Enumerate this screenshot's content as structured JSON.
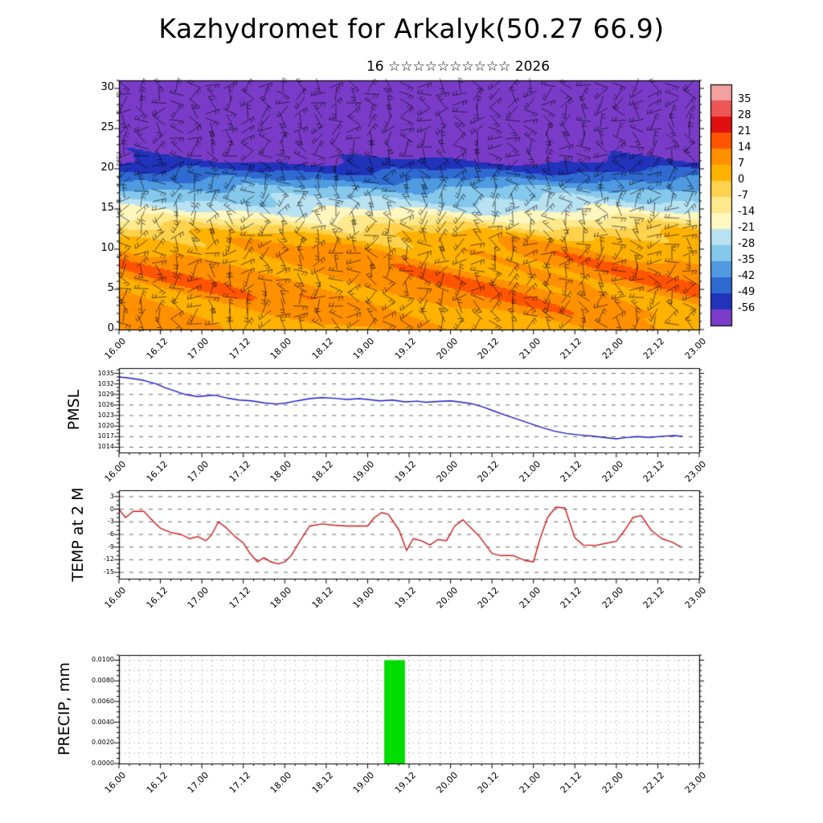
{
  "title": "Kazhydromet for Arkalyk(50.27 66.9)",
  "subtitle": "16 ☆☆☆☆☆☆☆☆☆☆ 2026",
  "colors": {
    "pmsl_line": "#1a1acc",
    "temp_line": "#cc1a1a",
    "precip_bar": "#00dd00",
    "grid_dash": "#444444",
    "grid_dot": "#777777",
    "axis": "#000000",
    "barb": "rgba(0,0,0,0.85)"
  },
  "time_axis": {
    "start": 16,
    "end": 23,
    "labels": [
      "16.00",
      "16.12",
      "17.00",
      "17.12",
      "18.00",
      "18.12",
      "19.00",
      "19.12",
      "20.00",
      "20.12",
      "21.00",
      "21.12",
      "22.00",
      "22.12",
      "23.00"
    ]
  },
  "chart_data": [
    {
      "id": "cross_section",
      "type": "heatmap",
      "ylabel": "",
      "ylim": [
        0,
        31
      ],
      "yticks": [
        0,
        5,
        10,
        15,
        20,
        25,
        30
      ],
      "colorbar_ticks": [
        35,
        28,
        21,
        14,
        7,
        0,
        -7,
        -14,
        -21,
        -28,
        -35,
        -42,
        -49,
        -56
      ],
      "palette": [
        "#f2a0a0",
        "#ee5555",
        "#e01010",
        "#ff5500",
        "#ff9000",
        "#ffb200",
        "#ffd24d",
        "#ffe98c",
        "#fff7c0",
        "#b8e2f2",
        "#85c8ec",
        "#4f9ae0",
        "#2f6ad0",
        "#2233bb",
        "#7a3cc8"
      ],
      "profile": {
        "heights": [
          0,
          2,
          4,
          6,
          8,
          10,
          11,
          12,
          13,
          14,
          15,
          16,
          17,
          18,
          19,
          20,
          21,
          22,
          24,
          27,
          31
        ],
        "values": [
          5,
          8,
          10,
          11,
          9,
          7,
          4,
          0,
          -7,
          -15,
          -22,
          -27,
          -31,
          -37,
          -44,
          -50,
          -56,
          -59,
          -60,
          -61,
          -62
        ]
      },
      "texture": {
        "p1": 2.8,
        "a1": 3.0,
        "c1": 6,
        "s1": 7,
        "b1": 2.2,
        "f1": 0.9,
        "p2": 1.15,
        "a2": 1.6,
        "c2": 10,
        "s2": 9,
        "b2": 1.0,
        "f2": 1.7
      },
      "barbs": {
        "dx": 22,
        "dy": 11,
        "len": 18
      }
    },
    {
      "id": "pmsl",
      "type": "line",
      "ylabel": "PMSL",
      "ylim": [
        1012.5,
        1036.5
      ],
      "yticks": [
        1035,
        1032,
        1029,
        1026,
        1023,
        1020,
        1017,
        1014
      ],
      "ytick_labels": [
        "1035",
        "1032",
        "1029",
        "1026",
        "1023",
        "1020",
        "1017",
        "1014"
      ],
      "minor_step": 1,
      "points": [
        [
          16.0,
          1034.0
        ],
        [
          16.15,
          1033.6
        ],
        [
          16.3,
          1033.0
        ],
        [
          16.45,
          1032.0
        ],
        [
          16.55,
          1031.0
        ],
        [
          16.7,
          1029.8
        ],
        [
          16.8,
          1029.0
        ],
        [
          16.95,
          1028.4
        ],
        [
          17.05,
          1028.6
        ],
        [
          17.15,
          1028.8
        ],
        [
          17.3,
          1028.0
        ],
        [
          17.45,
          1027.4
        ],
        [
          17.6,
          1027.2
        ],
        [
          17.75,
          1026.6
        ],
        [
          17.9,
          1026.3
        ],
        [
          18.0,
          1026.5
        ],
        [
          18.15,
          1027.2
        ],
        [
          18.3,
          1027.8
        ],
        [
          18.45,
          1028.1
        ],
        [
          18.6,
          1027.9
        ],
        [
          18.75,
          1027.6
        ],
        [
          18.9,
          1027.8
        ],
        [
          19.0,
          1027.6
        ],
        [
          19.15,
          1027.2
        ],
        [
          19.3,
          1027.4
        ],
        [
          19.45,
          1026.9
        ],
        [
          19.6,
          1027.1
        ],
        [
          19.7,
          1026.8
        ],
        [
          19.85,
          1027.0
        ],
        [
          20.0,
          1027.2
        ],
        [
          20.1,
          1026.9
        ],
        [
          20.25,
          1026.4
        ],
        [
          20.4,
          1025.4
        ],
        [
          20.5,
          1024.5
        ],
        [
          20.65,
          1023.2
        ],
        [
          20.8,
          1022.0
        ],
        [
          20.95,
          1020.8
        ],
        [
          21.1,
          1019.6
        ],
        [
          21.25,
          1018.6
        ],
        [
          21.4,
          1017.9
        ],
        [
          21.55,
          1017.5
        ],
        [
          21.7,
          1017.2
        ],
        [
          21.85,
          1016.8
        ],
        [
          22.0,
          1016.4
        ],
        [
          22.1,
          1016.7
        ],
        [
          22.25,
          1017.0
        ],
        [
          22.4,
          1016.8
        ],
        [
          22.55,
          1017.1
        ],
        [
          22.7,
          1017.3
        ],
        [
          22.8,
          1017.1
        ]
      ]
    },
    {
      "id": "temp2m",
      "type": "line",
      "ylabel": "TEMP at 2 M",
      "ylim": [
        -16.5,
        4.5
      ],
      "yticks": [
        3,
        0,
        -3,
        -6,
        -9,
        -12,
        -15
      ],
      "ytick_labels": [
        "3",
        "0",
        "-3",
        "-6",
        "-9",
        "-12",
        "-15"
      ],
      "minor_step": 1,
      "points": [
        [
          16.0,
          0
        ],
        [
          16.08,
          -2
        ],
        [
          16.17,
          -0.5
        ],
        [
          16.3,
          -0.5
        ],
        [
          16.42,
          -3
        ],
        [
          16.5,
          -4.5
        ],
        [
          16.62,
          -5.5
        ],
        [
          16.75,
          -6
        ],
        [
          16.85,
          -7
        ],
        [
          16.95,
          -6.5
        ],
        [
          17.05,
          -7.5
        ],
        [
          17.12,
          -6
        ],
        [
          17.2,
          -3
        ],
        [
          17.3,
          -4.5
        ],
        [
          17.4,
          -6.5
        ],
        [
          17.5,
          -8
        ],
        [
          17.58,
          -10.5
        ],
        [
          17.67,
          -12.5
        ],
        [
          17.75,
          -11.5
        ],
        [
          17.83,
          -12.5
        ],
        [
          17.92,
          -13
        ],
        [
          18.0,
          -12.5
        ],
        [
          18.08,
          -11
        ],
        [
          18.17,
          -8
        ],
        [
          18.3,
          -4
        ],
        [
          18.45,
          -3.5
        ],
        [
          18.6,
          -3.8
        ],
        [
          18.75,
          -4
        ],
        [
          18.9,
          -4
        ],
        [
          19.0,
          -4
        ],
        [
          19.08,
          -2
        ],
        [
          19.17,
          -0.8
        ],
        [
          19.25,
          -1.2
        ],
        [
          19.38,
          -5
        ],
        [
          19.47,
          -9.8
        ],
        [
          19.55,
          -7
        ],
        [
          19.65,
          -7.5
        ],
        [
          19.75,
          -8.5
        ],
        [
          19.85,
          -7.2
        ],
        [
          19.95,
          -7.5
        ],
        [
          20.05,
          -4
        ],
        [
          20.15,
          -2.5
        ],
        [
          20.25,
          -4.5
        ],
        [
          20.35,
          -6.5
        ],
        [
          20.5,
          -10.5
        ],
        [
          20.6,
          -11
        ],
        [
          20.75,
          -11
        ],
        [
          20.9,
          -12.2
        ],
        [
          21.0,
          -12.5
        ],
        [
          21.08,
          -7
        ],
        [
          21.17,
          -2
        ],
        [
          21.27,
          0.5
        ],
        [
          21.38,
          0.3
        ],
        [
          21.5,
          -6.8
        ],
        [
          21.6,
          -8.5
        ],
        [
          21.75,
          -8.6
        ],
        [
          21.9,
          -8
        ],
        [
          22.0,
          -7.6
        ],
        [
          22.1,
          -5
        ],
        [
          22.2,
          -2
        ],
        [
          22.3,
          -1.5
        ],
        [
          22.42,
          -5
        ],
        [
          22.55,
          -7
        ],
        [
          22.67,
          -7.8
        ],
        [
          22.78,
          -9
        ]
      ]
    },
    {
      "id": "precip",
      "type": "bar",
      "ylabel": "PRECIP, mm",
      "ylim": [
        0,
        0.0105
      ],
      "yticks": [
        0.01,
        0.008,
        0.006,
        0.004,
        0.002,
        0.0
      ],
      "ytick_labels": [
        "0.0100",
        "0.0080",
        "0.0060",
        "0.0040",
        "0.0020",
        "0.0000"
      ],
      "minor_step": 0.0005,
      "grid_h_step": 0.001,
      "grid_v_step": 0.125,
      "bars": [
        {
          "x0": 19.2,
          "x1": 19.45,
          "value": 0.01
        }
      ]
    }
  ]
}
